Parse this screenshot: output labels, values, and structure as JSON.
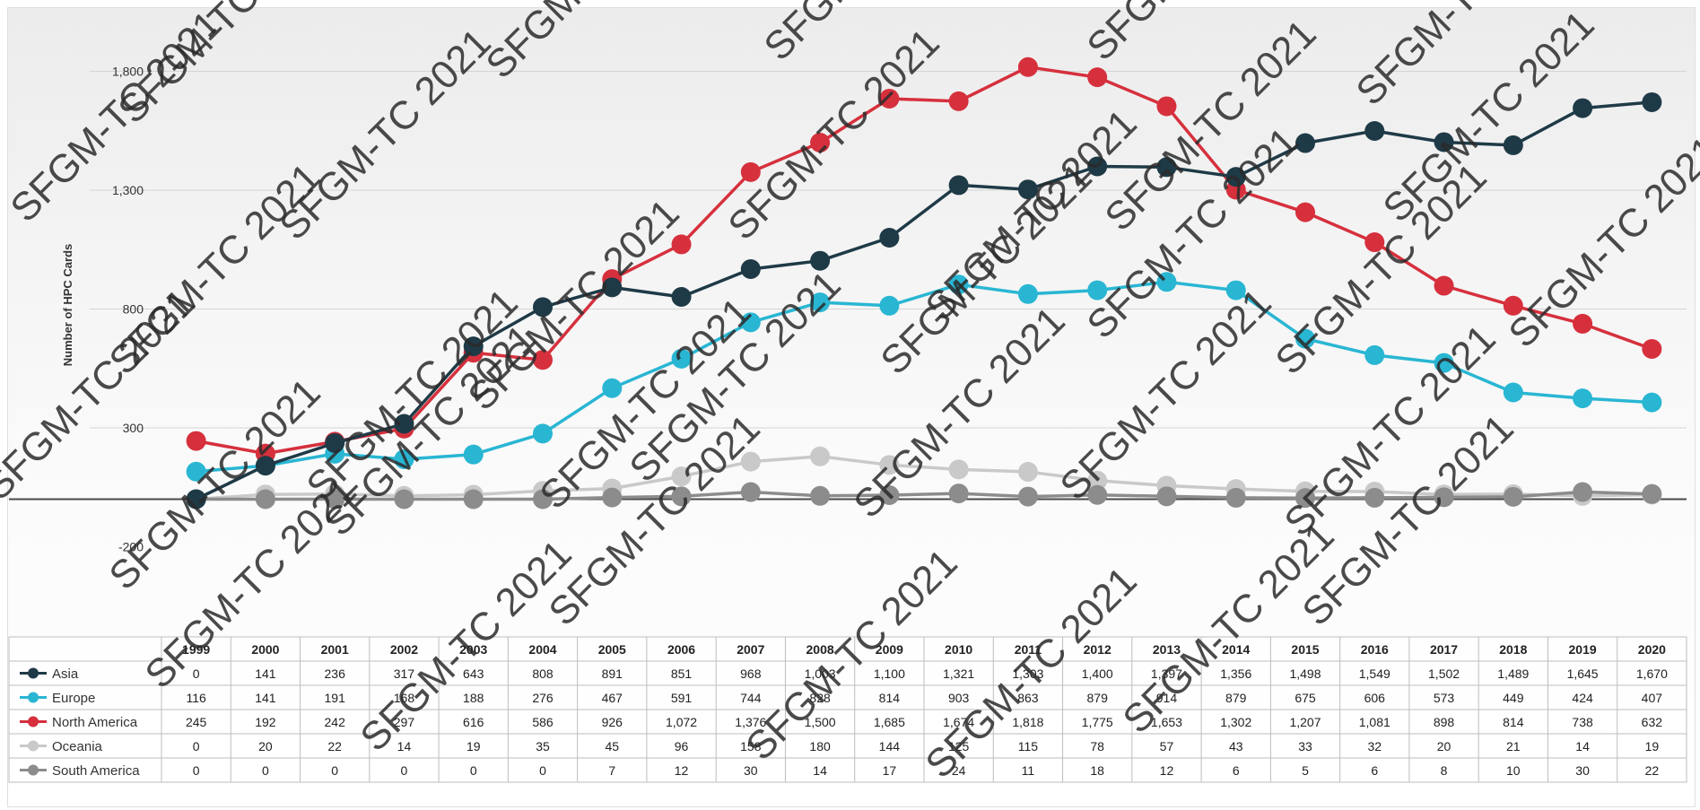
{
  "chart_data": {
    "type": "line",
    "ylabel": "Number of HPC Cards",
    "y_ticks": [
      1800,
      1300,
      800,
      300,
      -200
    ],
    "y_tick_labels": [
      "1,800",
      "1,300",
      "800",
      "300",
      "-200"
    ],
    "ylim": [
      -200,
      1950
    ],
    "grid": true,
    "legend": "data-table rows",
    "categories": [
      "1999",
      "2000",
      "2001",
      "2002",
      "2003",
      "2004",
      "2005",
      "2006",
      "2007",
      "2008",
      "2009",
      "2010",
      "2011",
      "2012",
      "2013",
      "2014",
      "2015",
      "2016",
      "2017",
      "2018",
      "2019",
      "2020"
    ],
    "series": [
      {
        "name": "Asia",
        "color": "#1f3a47",
        "values": [
          0,
          141,
          236,
          317,
          643,
          808,
          891,
          851,
          968,
          1003,
          1100,
          1321,
          1303,
          1400,
          1397,
          1356,
          1498,
          1549,
          1502,
          1489,
          1645,
          1670
        ],
        "labels": [
          "0",
          "141",
          "236",
          "317",
          "643",
          "808",
          "891",
          "851",
          "968",
          "1,003",
          "1,100",
          "1,321",
          "1,303",
          "1,400",
          "1,397",
          "1,356",
          "1,498",
          "1,549",
          "1,502",
          "1,489",
          "1,645",
          "1,670"
        ]
      },
      {
        "name": "Europe",
        "color": "#29b6d3",
        "values": [
          116,
          141,
          191,
          168,
          188,
          276,
          467,
          591,
          744,
          828,
          814,
          903,
          863,
          879,
          914,
          879,
          675,
          606,
          573,
          449,
          424,
          407
        ],
        "labels": [
          "116",
          "141",
          "191",
          "168",
          "188",
          "276",
          "467",
          "591",
          "744",
          "828",
          "814",
          "903",
          "863",
          "879",
          "914",
          "879",
          "675",
          "606",
          "573",
          "449",
          "424",
          "407"
        ]
      },
      {
        "name": "North America",
        "color": "#d6303d",
        "values": [
          245,
          192,
          242,
          297,
          616,
          586,
          926,
          1072,
          1376,
          1500,
          1685,
          1674,
          1818,
          1775,
          1653,
          1302,
          1207,
          1081,
          898,
          814,
          738,
          632
        ],
        "labels": [
          "245",
          "192",
          "242",
          "297",
          "616",
          "586",
          "926",
          "1,072",
          "1,376",
          "1,500",
          "1,685",
          "1,674",
          "1,818",
          "1,775",
          "1,653",
          "1,302",
          "1,207",
          "1,081",
          "898",
          "814",
          "738",
          "632"
        ]
      },
      {
        "name": "Oceania",
        "color": "#c9c9c9",
        "values": [
          0,
          20,
          22,
          14,
          19,
          35,
          45,
          96,
          158,
          180,
          144,
          125,
          115,
          78,
          57,
          43,
          33,
          32,
          20,
          21,
          14,
          19
        ],
        "labels": [
          "0",
          "20",
          "22",
          "14",
          "19",
          "35",
          "45",
          "96",
          "158",
          "180",
          "144",
          "125",
          "115",
          "78",
          "57",
          "43",
          "33",
          "32",
          "20",
          "21",
          "14",
          "19"
        ]
      },
      {
        "name": "South America",
        "color": "#8c8c8c",
        "values": [
          0,
          0,
          0,
          0,
          0,
          0,
          7,
          12,
          30,
          14,
          17,
          24,
          11,
          18,
          12,
          6,
          5,
          6,
          8,
          10,
          30,
          22
        ],
        "labels": [
          "0",
          "0",
          "0",
          "0",
          "0",
          "0",
          "7",
          "12",
          "30",
          "14",
          "17",
          "24",
          "11",
          "18",
          "12",
          "6",
          "5",
          "6",
          "8",
          "10",
          "30",
          "22"
        ]
      }
    ]
  },
  "watermark": "SFGM-TC 2021"
}
